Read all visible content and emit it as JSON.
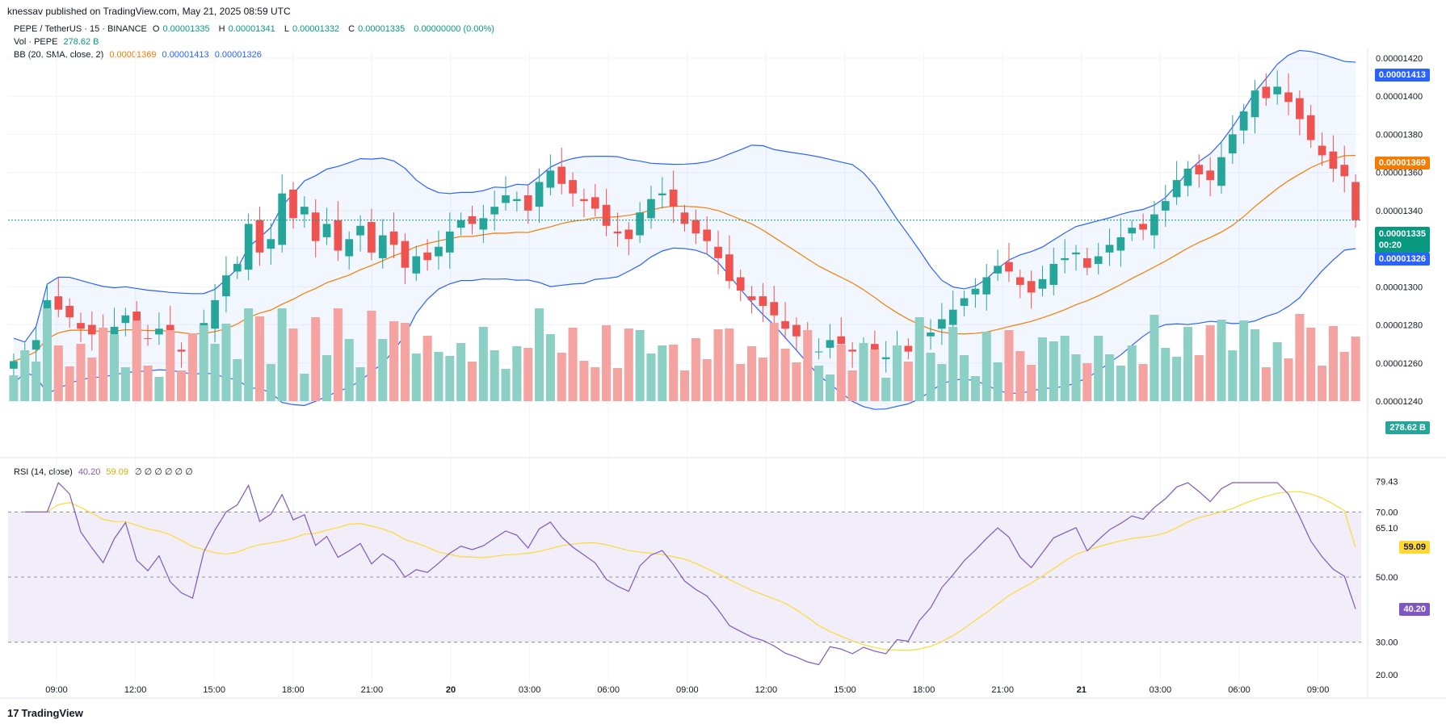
{
  "header": {
    "published": "knessav published on TradingView.com, May 21, 2025 08:59 UTC"
  },
  "legend": {
    "symbol": "PEPE / TetherUS · 15 · BINANCE",
    "open_label": "O",
    "open": "0.00001335",
    "high_label": "H",
    "high": "0.00001341",
    "low_label": "L",
    "low": "0.00001332",
    "close_label": "C",
    "close": "0.00001335",
    "change": "0.00000000 (0.00%)",
    "vol_label": "Vol · PEPE",
    "vol_value": "278.62 B",
    "bb_label": "BB (20, SMA, close, 2)",
    "bb_basis": "0.00001369",
    "bb_upper": "0.00001413",
    "bb_lower": "0.00001326",
    "rsi_label": "RSI (14, close)",
    "rsi_value": "40.20",
    "rsi_ma": "59.09",
    "rsi_empty": "∅ ∅ ∅ ∅ ∅ ∅"
  },
  "badges": {
    "bb_upper": "0.00001413",
    "bb_basis": "0.00001369",
    "price": "0.00001335",
    "countdown": "00:20",
    "bb_lower": "0.00001326",
    "volume": "278.62 B",
    "rsi_ma": "59.09",
    "rsi": "40.20"
  },
  "colors": {
    "up": "#26a69a",
    "down": "#ef5350",
    "vol_up": "#8ccfc4",
    "vol_down": "#f4a3a1",
    "bb_band": "#2962ff",
    "bb_basis": "#f57c00",
    "rsi": "#7e57c2",
    "rsi_ma": "#fdd835",
    "rsi_bg": "#ede7f6"
  },
  "footer": {
    "brand": "TradingView",
    "logo": "17"
  },
  "chart_data": [
    {
      "type": "candlestick",
      "title": "PEPE / TetherUS · 15 · BINANCE",
      "ylim": [
        1.24e-05,
        1.42e-05
      ],
      "y_ticks": [
        "0.00001420",
        "0.00001400",
        "0.00001380",
        "0.00001360",
        "0.00001340",
        "0.00001320",
        "0.00001300",
        "0.00001280",
        "0.00001260",
        "0.00001240"
      ],
      "x_ticks": [
        "09:00",
        "12:00",
        "15:00",
        "18:00",
        "21:00",
        "20",
        "03:00",
        "06:00",
        "09:00",
        "12:00",
        "15:00",
        "18:00",
        "21:00",
        "21",
        "03:00",
        "06:00",
        "09:00"
      ],
      "close_series": [
        1.261,
        1.265,
        1.272,
        1.293,
        1.288,
        1.284,
        1.278,
        1.275,
        1.272,
        1.279,
        1.285,
        1.276,
        1.273,
        1.278,
        1.27,
        1.266,
        1.264,
        1.281,
        1.293,
        1.306,
        1.312,
        1.333,
        1.318,
        1.325,
        1.349,
        1.336,
        1.342,
        1.324,
        1.333,
        1.319,
        1.325,
        1.332,
        1.318,
        1.327,
        1.322,
        1.31,
        1.316,
        1.314,
        1.321,
        1.329,
        1.335,
        1.333,
        1.336,
        1.342,
        1.348,
        1.346,
        1.34,
        1.355,
        1.361,
        1.354,
        1.349,
        1.345,
        1.341,
        1.332,
        1.328,
        1.325,
        1.339,
        1.346,
        1.349,
        1.342,
        1.333,
        1.328,
        1.324,
        1.315,
        1.303,
        1.298,
        1.293,
        1.29,
        1.285,
        1.278,
        1.274,
        1.269,
        1.266,
        1.272,
        1.27,
        1.266,
        1.268,
        1.265,
        1.263,
        1.267,
        1.266,
        1.272,
        1.276,
        1.283,
        1.288,
        1.294,
        1.299,
        1.305,
        1.311,
        1.308,
        1.301,
        1.297,
        1.304,
        1.312,
        1.315,
        1.318,
        1.31,
        1.316,
        1.322,
        1.326,
        1.331,
        1.33,
        1.338,
        1.345,
        1.356,
        1.362,
        1.359,
        1.356,
        1.368,
        1.38,
        1.392,
        1.403,
        1.399,
        1.405,
        1.397,
        1.388,
        1.377,
        1.369,
        1.362,
        1.358,
        1.335
      ],
      "bb_upper_last": 1.413e-05,
      "bb_basis_last": 1.369e-05,
      "bb_lower_last": 1.326e-05,
      "last_price": 1.335e-05
    },
    {
      "type": "bar",
      "title": "Vol · PEPE",
      "last_value": "278.62 B"
    },
    {
      "type": "line",
      "title": "RSI (14, close)",
      "ylim": [
        20,
        80
      ],
      "y_ticks": [
        "79.43",
        "70.00",
        "65.10",
        "59.09",
        "50.00",
        "40.20",
        "30.00",
        "20.00"
      ],
      "levels": [
        70,
        50,
        30
      ],
      "rsi_last": 40.2,
      "rsi_ma_last": 59.09
    }
  ]
}
